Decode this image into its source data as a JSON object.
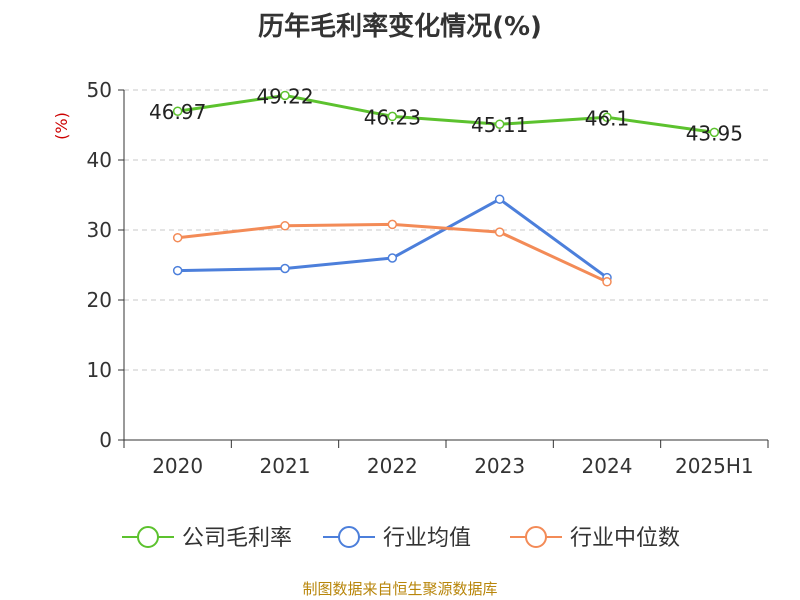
{
  "title": "历年毛利率变化情况(%)",
  "footer": "制图数据来自恒生聚源数据库",
  "chart_data": {
    "type": "line",
    "title": "历年毛利率变化情况(%)",
    "ylabel": "(%)",
    "xlabel": "",
    "categories": [
      "2020",
      "2021",
      "2022",
      "2023",
      "2024",
      "2025H1"
    ],
    "ylim": [
      0,
      50
    ],
    "yticks": [
      0,
      10,
      20,
      30,
      40,
      50
    ],
    "grid": true,
    "legend_position": "bottom",
    "series": [
      {
        "name": "公司毛利率",
        "color": "#5cc22e",
        "values": [
          46.97,
          49.22,
          46.23,
          45.11,
          46.1,
          43.95
        ],
        "show_labels": true
      },
      {
        "name": "行业均值",
        "color": "#4c7fdb",
        "values": [
          24.2,
          24.5,
          26.0,
          34.4,
          23.2,
          null
        ],
        "show_labels": false
      },
      {
        "name": "行业中位数",
        "color": "#f38b57",
        "values": [
          28.9,
          30.6,
          30.8,
          29.7,
          22.6,
          null
        ],
        "show_labels": false
      }
    ]
  }
}
